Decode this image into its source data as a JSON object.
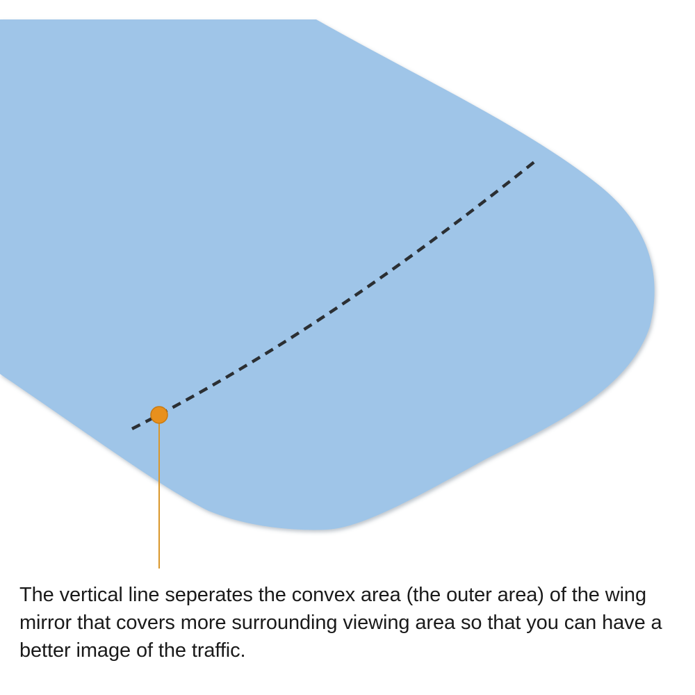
{
  "caption": "The vertical line seperates the convex area (the outer area) of the wing mirror that covers more surrounding viewing area so that you can have a better image of the traffic.",
  "colors": {
    "mirror_fill": "#9fc5e8",
    "mirror_shadow": "#8b9aa8",
    "divider_line": "#2b2f33",
    "marker": "#e8901c",
    "marker_stroke": "#c97a10",
    "leader_line": "#d9962a",
    "text": "#1a1a1a"
  },
  "icons": {
    "marker": "orange-dot-marker"
  }
}
